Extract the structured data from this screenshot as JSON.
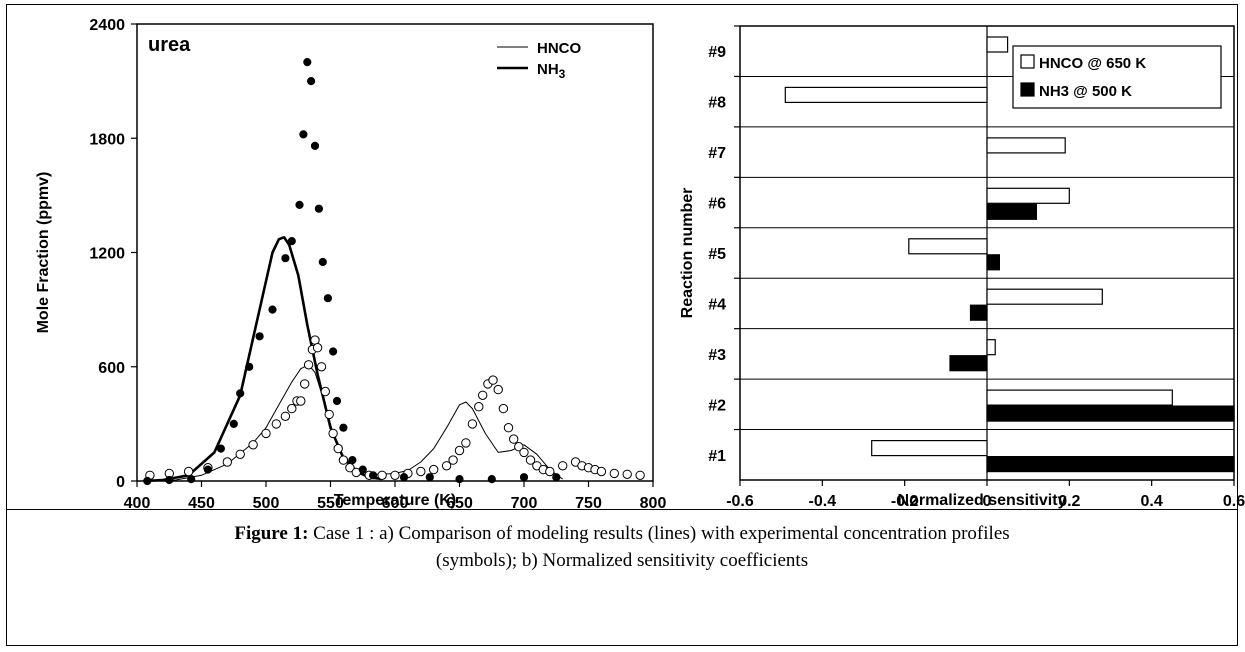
{
  "chart_data": [
    {
      "type": "line",
      "annotation": "urea",
      "xlabel": "Temperature (K)",
      "ylabel": "Mole Fraction (ppmv)",
      "xlim": [
        400,
        800
      ],
      "ylim": [
        0,
        2400
      ],
      "xticks": [
        400,
        450,
        500,
        550,
        600,
        650,
        700,
        750,
        800
      ],
      "yticks": [
        0,
        600,
        1200,
        1800,
        2400
      ],
      "legend": {
        "position": "top-right",
        "entries": [
          "HNCO",
          "NH3"
        ]
      },
      "series": [
        {
          "name": "HNCO",
          "style": "thin-line",
          "x": [
            405,
            430,
            450,
            470,
            490,
            500,
            510,
            520,
            527,
            533,
            538,
            545,
            552,
            560,
            570,
            580,
            590,
            600,
            610,
            620,
            630,
            640,
            650,
            655,
            660,
            670,
            680,
            690,
            700,
            710,
            720,
            730
          ],
          "y": [
            0,
            5,
            30,
            90,
            200,
            280,
            400,
            520,
            590,
            610,
            570,
            420,
            250,
            130,
            60,
            35,
            35,
            40,
            55,
            100,
            170,
            280,
            400,
            415,
            380,
            250,
            150,
            160,
            190,
            140,
            60,
            10
          ]
        },
        {
          "name": "NH3",
          "style": "thick-line",
          "x": [
            405,
            420,
            440,
            460,
            480,
            490,
            500,
            505,
            510,
            514,
            518,
            525,
            532,
            540,
            550,
            560,
            570,
            580,
            590
          ],
          "y": [
            0,
            5,
            30,
            150,
            450,
            750,
            1050,
            1200,
            1270,
            1280,
            1240,
            1080,
            820,
            560,
            280,
            120,
            50,
            20,
            10
          ]
        },
        {
          "name": "HNCO (exp)",
          "style": "open-circle",
          "x": [
            410,
            425,
            440,
            455,
            470,
            480,
            490,
            500,
            508,
            515,
            520,
            524,
            527,
            530,
            533,
            536,
            538,
            540,
            543,
            546,
            549,
            552,
            556,
            560,
            565,
            570,
            580,
            590,
            600,
            610,
            620,
            630,
            640,
            645,
            650,
            655,
            660,
            665,
            668,
            672,
            676,
            680,
            684,
            688,
            692,
            696,
            700,
            705,
            710,
            715,
            720,
            730,
            740,
            745,
            750,
            755,
            760,
            770,
            780,
            790
          ],
          "y": [
            30,
            40,
            50,
            70,
            100,
            140,
            190,
            250,
            300,
            340,
            380,
            420,
            420,
            510,
            610,
            690,
            740,
            700,
            600,
            470,
            350,
            250,
            170,
            110,
            70,
            45,
            30,
            30,
            30,
            40,
            50,
            60,
            80,
            110,
            160,
            200,
            300,
            390,
            450,
            510,
            530,
            480,
            380,
            280,
            220,
            180,
            150,
            110,
            80,
            60,
            50,
            80,
            100,
            80,
            70,
            60,
            50,
            40,
            35,
            30
          ]
        },
        {
          "name": "NH3 (exp)",
          "style": "filled-circle",
          "x": [
            408,
            425,
            442,
            455,
            465,
            475,
            480,
            487,
            495,
            505,
            515,
            520,
            526,
            529,
            532,
            535,
            538,
            541,
            544,
            548,
            552,
            555,
            560,
            567,
            575,
            583,
            607,
            627,
            650,
            675,
            700,
            725
          ],
          "y": [
            0,
            5,
            10,
            60,
            170,
            300,
            460,
            600,
            760,
            900,
            1170,
            1260,
            1450,
            1820,
            2200,
            2100,
            1760,
            1430,
            1150,
            960,
            680,
            420,
            280,
            110,
            60,
            30,
            20,
            20,
            10,
            10,
            20,
            20
          ]
        }
      ]
    },
    {
      "type": "bar",
      "orientation": "horizontal",
      "ylabel": "Reaction number",
      "xlabel": "Normalized sensitivity",
      "xlim": [
        -0.6,
        0.6
      ],
      "xticks": [
        "-0.6",
        "-0.4",
        "-0.2",
        "0",
        "0.2",
        "0.4",
        "0.6"
      ],
      "categories": [
        "#9",
        "#8",
        "#7",
        "#6",
        "#5",
        "#4",
        "#3",
        "#2",
        "#1"
      ],
      "legend": {
        "position": "top-right"
      },
      "series": [
        {
          "name": "HNCO @ 650 K",
          "fill": "open",
          "values": [
            0.05,
            -0.49,
            0.19,
            0.2,
            -0.19,
            0.28,
            0.02,
            0.45,
            -0.28
          ]
        },
        {
          "name": "NH3 @ 500 K",
          "fill": "filled",
          "values": [
            null,
            null,
            null,
            0.12,
            0.03,
            -0.04,
            -0.09,
            0.6,
            0.6
          ]
        }
      ]
    }
  ],
  "caption": {
    "label": "Figure 1:",
    "line1": "Case 1 : a) Comparison of modeling results (lines) with experimental concentration profiles",
    "line2": "(symbols);  b)  Normalized sensitivity coefficients"
  }
}
